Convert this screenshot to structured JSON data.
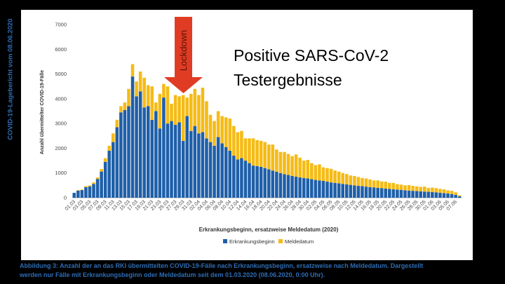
{
  "side_title": "COVID-19-Lagebericht vom 08.06.2020",
  "slide_title_line1": "Positive SARS-CoV-2",
  "slide_title_line2": "Testergebnisse",
  "arrow_label": "Lockdown",
  "caption_line1": "Abbildung 3: Anzahl der an das RKI übermittelten COVID-19-Fälle nach Erkrankungsbeginn, ersatzweise nach Meldedatum. Dargestellt",
  "caption_line2": "werden nur Fälle mit Erkrankungsbeginn oder Meldedatum seit dem 01.03.2020 (08.06.2020, 0:00 Uhr).",
  "colors": {
    "erkrankung": "#1f5fa8",
    "melde": "#f5bb16",
    "arrow": "#e03c24",
    "caption": "#2e6db4"
  },
  "chart_data": {
    "type": "bar",
    "stacked": true,
    "ylabel": "Anzahl übermittelter COVID-19-Fälle",
    "xlabel": "Erkrankungsbeginn, ersatzweise Meldedatum (2020)",
    "ylim": [
      0,
      7000
    ],
    "yticks": [
      "0",
      "1000",
      "2000",
      "3000",
      "4000",
      "5000",
      "6000",
      "7000"
    ],
    "tick_labels": [
      "01.03",
      "03.03",
      "05.03",
      "07.03",
      "09.03",
      "11.03",
      "13.03",
      "15.03",
      "17.03",
      "19.03",
      "21.03",
      "23.03",
      "25.03",
      "27.03",
      "29.03",
      "31.03",
      "02.04",
      "04.04",
      "06.04",
      "08.04",
      "10.04",
      "12.04",
      "14.04",
      "16.04",
      "18.04",
      "20.04",
      "22.04",
      "24.04",
      "26.04",
      "28.04",
      "30.04",
      "02.05",
      "04.05",
      "06.05",
      "08.05",
      "10.05",
      "12.05",
      "14.05",
      "16.05",
      "18.05",
      "20.05",
      "22.05",
      "24.05",
      "26.05",
      "28.05",
      "30.05",
      "01.06",
      "03.06",
      "05.06",
      "07.06"
    ],
    "legend": "bottom",
    "series": [
      {
        "name": "Erkrankungsbeginn",
        "values": [
          200,
          290,
          310,
          430,
          460,
          560,
          760,
          1060,
          1450,
          1900,
          2250,
          2850,
          3450,
          3550,
          3700,
          4900,
          4100,
          4300,
          3650,
          3700,
          3150,
          3500,
          2800,
          4050,
          3000,
          3100,
          2950,
          3050,
          2300,
          3300,
          2700,
          2900,
          2600,
          2650,
          2400,
          2250,
          2100,
          2450,
          2200,
          2050,
          1900,
          1700,
          1550,
          1600,
          1500,
          1400,
          1300,
          1280,
          1250,
          1200,
          1150,
          1100,
          1050,
          1000,
          950,
          920,
          880,
          850,
          820,
          800,
          780,
          750,
          720,
          700,
          680,
          650,
          620,
          600,
          580,
          560,
          540,
          520,
          500,
          480,
          470,
          450,
          430,
          420,
          400,
          390,
          370,
          360,
          340,
          330,
          320,
          300,
          290,
          280,
          270,
          260,
          250,
          240,
          230,
          220,
          200,
          190,
          170,
          150,
          120,
          60
        ]
      },
      {
        "name": "Meldedatum",
        "values": [
          0,
          20,
          20,
          40,
          40,
          60,
          60,
          100,
          150,
          200,
          350,
          300,
          250,
          300,
          700,
          500,
          600,
          800,
          1200,
          850,
          1350,
          350,
          1400,
          550,
          1500,
          700,
          1200,
          1050,
          1850,
          750,
          1500,
          1500,
          1550,
          1800,
          1500,
          1100,
          1000,
          1050,
          1100,
          1200,
          1300,
          1200,
          1100,
          1100,
          900,
          1000,
          1100,
          1050,
          1050,
          1050,
          1000,
          1050,
          900,
          850,
          900,
          850,
          800,
          900,
          800,
          700,
          750,
          650,
          600,
          650,
          550,
          550,
          550,
          500,
          480,
          440,
          420,
          380,
          380,
          360,
          330,
          330,
          310,
          280,
          300,
          270,
          280,
          240,
          260,
          220,
          210,
          200,
          220,
          200,
          190,
          180,
          200,
          160,
          180,
          170,
          160,
          150,
          130,
          130,
          100,
          40
        ]
      }
    ]
  }
}
